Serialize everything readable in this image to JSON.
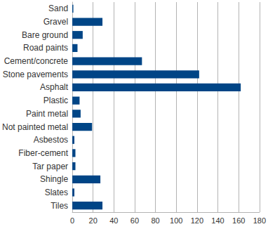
{
  "chart_data": {
    "type": "bar",
    "orientation": "horizontal",
    "categories": [
      "Sand",
      "Gravel",
      "Bare ground",
      "Road paints",
      "Cement/concrete",
      "Stone pavements",
      "Asphalt",
      "Plastic",
      "Paint metal",
      "Not painted metal",
      "Asbestos",
      "Fiber-cement",
      "Tar paper",
      "Shingle",
      "Slates",
      "Tiles"
    ],
    "values": [
      1,
      29,
      10,
      5,
      67,
      122,
      162,
      7,
      8,
      19,
      2,
      3,
      3,
      27,
      2,
      29
    ],
    "color": "#004586",
    "xlim": [
      0,
      180
    ],
    "xticks": [
      0,
      20,
      40,
      60,
      80,
      100,
      120,
      140,
      160,
      180
    ],
    "grid": true
  }
}
